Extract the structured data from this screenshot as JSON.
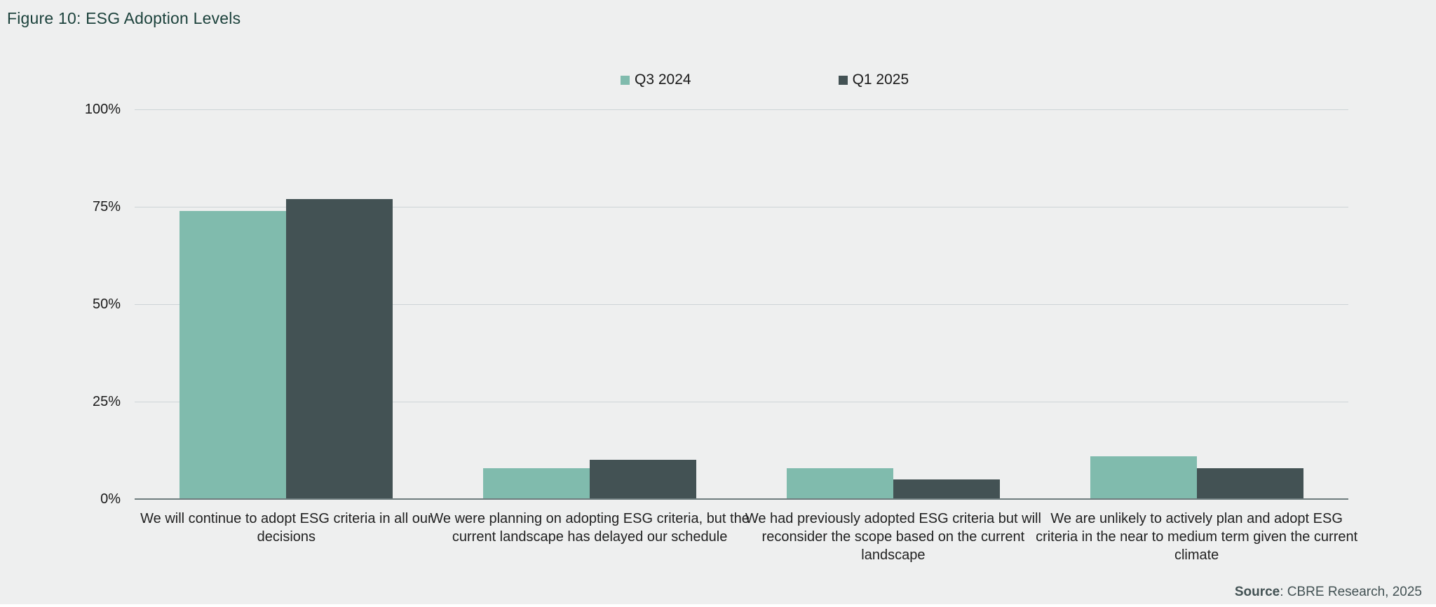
{
  "title": "Figure 10: ESG Adoption Levels",
  "colors": {
    "background": "#EEEFEF",
    "title_text": "#1C423C",
    "gridline": "#CDD4D6",
    "axis_baseline": "#6E7C7E",
    "series_q3_2024": "#80BBAD",
    "series_q1_2025": "#435254",
    "source_text": "#435254"
  },
  "source": {
    "label": "Source",
    "rest": ": CBRE Research, 2025"
  },
  "chart_data": {
    "type": "bar",
    "title": "Figure 10: ESG Adoption Levels",
    "categories": [
      "We will continue to adopt ESG criteria in all our decisions",
      "We were planning on adopting ESG criteria, but the current landscape has delayed our schedule",
      "We had previously adopted ESG criteria but will reconsider the scope based on the current landscape",
      "We are unlikely to actively plan and adopt ESG criteria in the near to medium term given the current climate"
    ],
    "series": [
      {
        "name": "Q3 2024",
        "color": "#80BBAD",
        "values": [
          74,
          8,
          8,
          11
        ]
      },
      {
        "name": "Q1 2025",
        "color": "#435254",
        "values": [
          77,
          10,
          5,
          8
        ]
      }
    ],
    "xlabel": "",
    "ylabel": "",
    "ylim": [
      0,
      100
    ],
    "yticks": [
      "0%",
      "25%",
      "50%",
      "75%",
      "100%"
    ],
    "grid": true,
    "legend_position": "top-center"
  }
}
